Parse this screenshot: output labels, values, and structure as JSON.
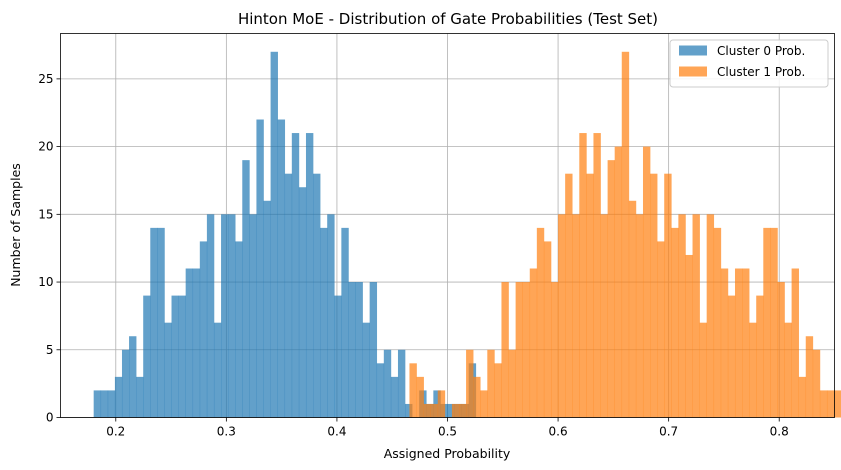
{
  "chart_data": {
    "type": "bar",
    "title": "Hinton MoE - Distribution of Gate Probabilities (Test Set)",
    "xlabel": "Assigned Probability",
    "ylabel": "Number of Samples",
    "xlim": [
      0.15,
      0.85
    ],
    "ylim": [
      0,
      28.35
    ],
    "xticks": [
      0.2,
      0.3,
      0.4,
      0.5,
      0.6,
      0.7,
      0.8
    ],
    "yticks": [
      0,
      5,
      10,
      15,
      20,
      25
    ],
    "bin_width": 0.0064,
    "grid": true,
    "legend_position": "top-right",
    "series": [
      {
        "name": "Cluster 0 Prob.",
        "color": "#1f77b4",
        "bin_start": 0.18,
        "values": [
          2,
          2,
          2,
          3,
          5,
          6,
          3,
          9,
          14,
          14,
          7,
          9,
          9,
          11,
          11,
          13,
          15,
          7,
          15,
          15,
          13,
          19,
          15,
          22,
          16,
          27,
          22,
          18,
          21,
          17,
          21,
          18,
          14,
          15,
          9,
          14,
          10,
          10,
          7,
          10,
          4,
          5,
          3,
          5,
          1,
          0,
          2,
          1,
          2,
          1,
          1,
          1,
          1,
          4
        ]
      },
      {
        "name": "Cluster 1 Prob.",
        "color": "#ff7f0e",
        "bin_start": 0.4656,
        "values": [
          4,
          3,
          1,
          1,
          2,
          0,
          1,
          1,
          5,
          3,
          2,
          5,
          4,
          10,
          5,
          10,
          10,
          11,
          14,
          13,
          10,
          15,
          18,
          15,
          21,
          18,
          21,
          15,
          19,
          20,
          27,
          16,
          15,
          20,
          18,
          13,
          18,
          14,
          15,
          12,
          15,
          7,
          15,
          14,
          11,
          9,
          11,
          11,
          7,
          9,
          14,
          14,
          10,
          7,
          11,
          3,
          6,
          5,
          2,
          2,
          2
        ]
      }
    ]
  }
}
